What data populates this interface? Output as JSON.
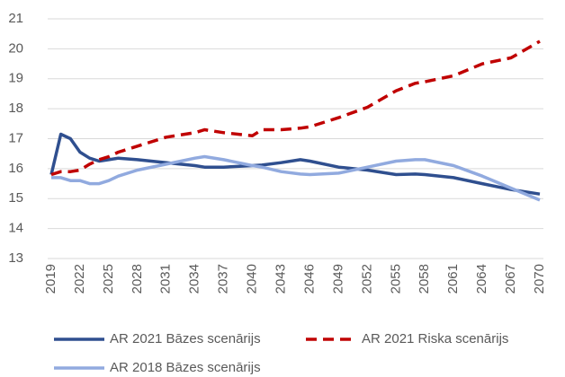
{
  "chart_data": {
    "type": "line",
    "x": [
      2019,
      2020,
      2021,
      2022,
      2023,
      2024,
      2025,
      2026,
      2028,
      2031,
      2034,
      2035,
      2037,
      2040,
      2041,
      2043,
      2045,
      2046,
      2049,
      2052,
      2055,
      2057,
      2058,
      2061,
      2064,
      2067,
      2070
    ],
    "xlim": [
      2019,
      2070
    ],
    "xticks": [
      2019,
      2022,
      2025,
      2028,
      2031,
      2034,
      2037,
      2040,
      2043,
      2046,
      2049,
      2052,
      2055,
      2058,
      2061,
      2064,
      2067,
      2070
    ],
    "ylim": [
      13,
      21
    ],
    "yticks": [
      13,
      14,
      15,
      16,
      17,
      18,
      19,
      20,
      21
    ],
    "grid": true,
    "legend": "bottom",
    "series": [
      {
        "name": "AR 2021 Bāzes scenārijs",
        "color": "#2f4f8f",
        "style": "solid",
        "values": [
          15.8,
          17.15,
          17.0,
          16.55,
          16.35,
          16.25,
          16.3,
          16.35,
          16.3,
          16.2,
          16.1,
          16.05,
          16.05,
          16.1,
          16.12,
          16.2,
          16.3,
          16.25,
          16.05,
          15.95,
          15.8,
          15.82,
          15.8,
          15.7,
          15.5,
          15.3,
          15.15
        ]
      },
      {
        "name": "AR 2021 Riska scenārijs",
        "color": "#c00000",
        "style": "dashed",
        "values": [
          15.8,
          15.9,
          15.9,
          15.95,
          16.15,
          16.3,
          16.4,
          16.55,
          16.75,
          17.05,
          17.2,
          17.3,
          17.2,
          17.1,
          17.3,
          17.3,
          17.35,
          17.4,
          17.7,
          18.05,
          18.6,
          18.85,
          18.9,
          19.1,
          19.5,
          19.7,
          20.25
        ]
      },
      {
        "name": "AR 2018 Bāzes scenārijs",
        "color": "#91aadf",
        "style": "solid",
        "values": [
          15.7,
          15.7,
          15.6,
          15.6,
          15.5,
          15.5,
          15.6,
          15.75,
          15.95,
          16.15,
          16.35,
          16.4,
          16.3,
          16.1,
          16.05,
          15.9,
          15.82,
          15.8,
          15.85,
          16.05,
          16.25,
          16.3,
          16.3,
          16.1,
          15.75,
          15.35,
          14.95
        ]
      }
    ]
  }
}
